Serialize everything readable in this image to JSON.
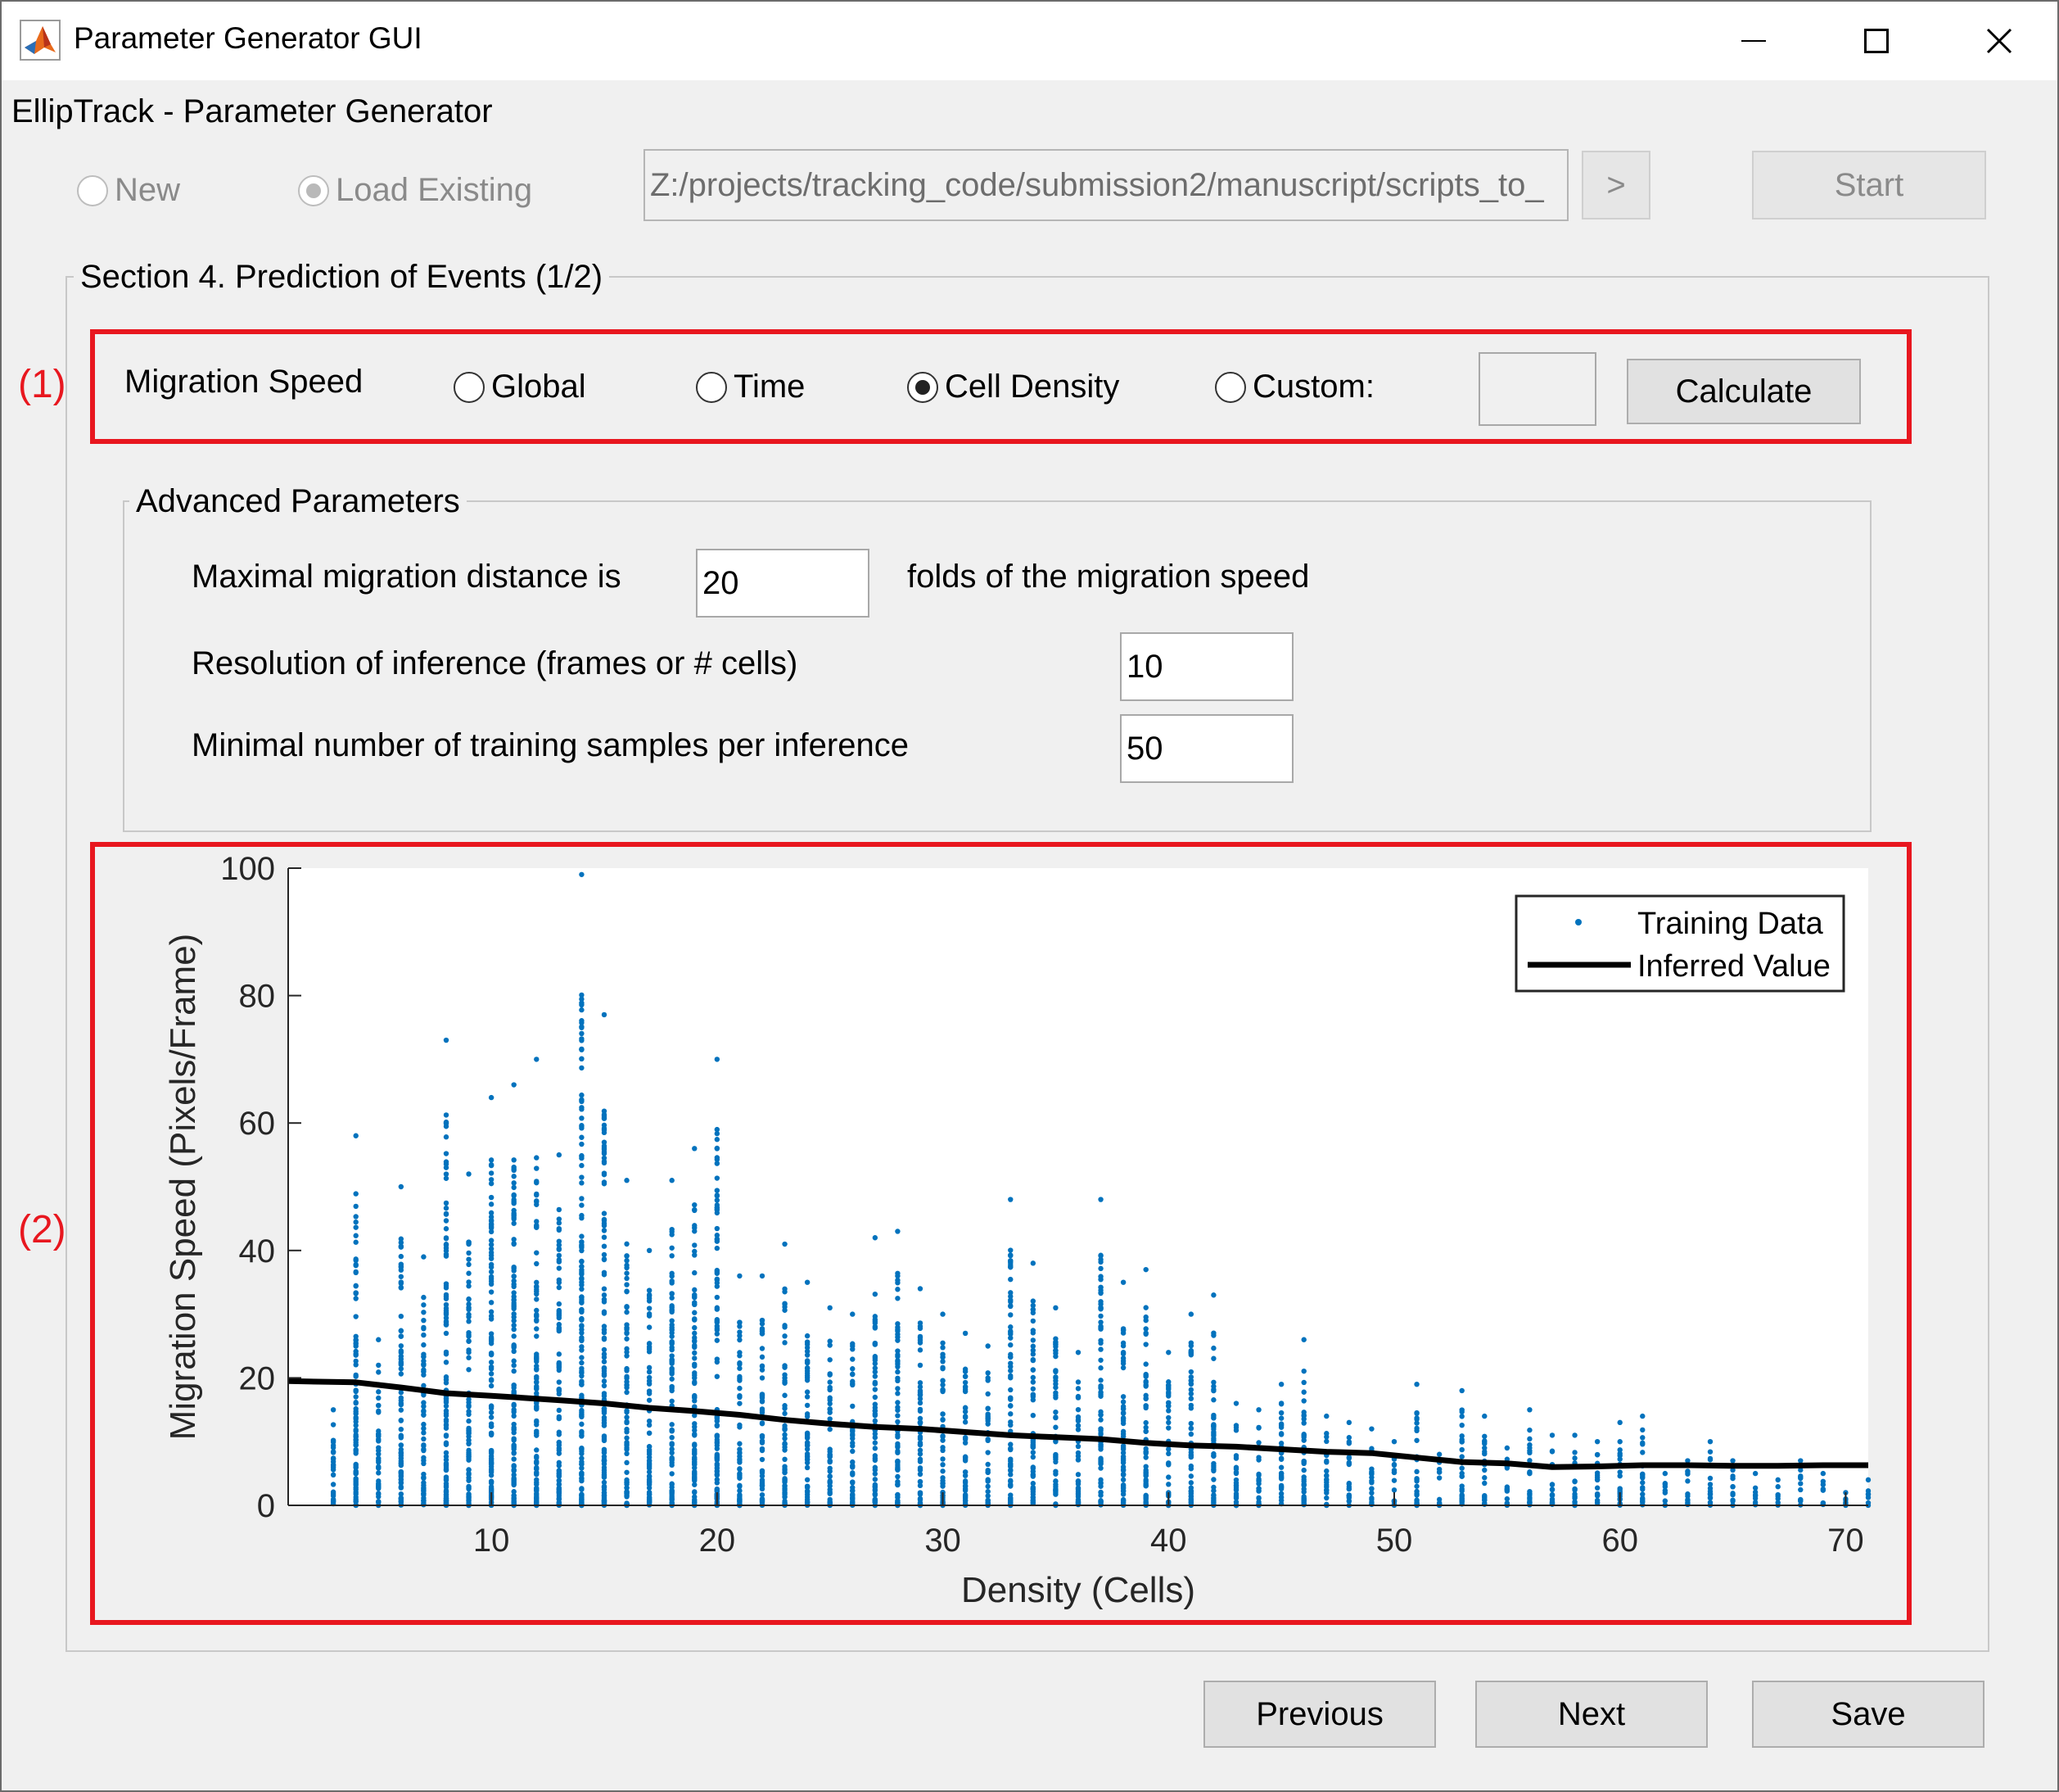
{
  "window": {
    "title": "Parameter Generator GUI",
    "controls": [
      "minimize",
      "maximize",
      "close"
    ]
  },
  "header": {
    "app_name": "EllipTrack - Parameter Generator"
  },
  "mode": {
    "options": [
      {
        "label": "New",
        "selected": false,
        "enabled": false
      },
      {
        "label": "Load Existing",
        "selected": true,
        "enabled": false
      }
    ],
    "path_value": "Z:/projects/tracking_code/submission2/manuscript/scripts_to_",
    "browse_label": ">",
    "start_label": "Start"
  },
  "section": {
    "title": "Section 4. Prediction of Events (1/2)",
    "annotation_1": "(1)",
    "annotation_2": "(2)",
    "migration_speed": {
      "label": "Migration Speed",
      "options": [
        {
          "label": "Global",
          "selected": false
        },
        {
          "label": "Time",
          "selected": false
        },
        {
          "label": "Cell Density",
          "selected": true
        },
        {
          "label": "Custom:",
          "selected": false
        }
      ],
      "custom_value": "",
      "calculate_label": "Calculate"
    },
    "advanced": {
      "title": "Advanced Parameters",
      "max_distance_label": "Maximal migration distance is",
      "max_distance_value": "20",
      "max_distance_suffix": "folds of the migration speed",
      "resolution_label": "Resolution of inference (frames or # cells)",
      "resolution_value": "10",
      "min_samples_label": "Minimal number of training samples per inference",
      "min_samples_value": "50"
    }
  },
  "footer": {
    "previous_label": "Previous",
    "next_label": "Next",
    "save_label": "Save"
  },
  "colors": {
    "accent_red": "#e8171f",
    "scatter_blue": "#0072bd",
    "line_black": "#000000"
  },
  "chart_data": {
    "type": "scatter",
    "xlabel": "Density (Cells)",
    "ylabel": "Migration Speed (Pixels/Frame)",
    "xlim": [
      1,
      71
    ],
    "ylim": [
      0,
      100
    ],
    "xticks": [
      10,
      20,
      30,
      40,
      50,
      60,
      70
    ],
    "yticks": [
      0,
      20,
      40,
      60,
      80,
      100
    ],
    "legend_position": "top-right",
    "series": [
      {
        "name": "Training Data",
        "style": "dots",
        "ranges_per_density": [
          {
            "x": 3,
            "max": 15
          },
          {
            "x": 4,
            "max": 58
          },
          {
            "x": 5,
            "max": 26
          },
          {
            "x": 6,
            "max": 50
          },
          {
            "x": 7,
            "max": 39
          },
          {
            "x": 8,
            "max": 73
          },
          {
            "x": 9,
            "max": 52
          },
          {
            "x": 10,
            "max": 64
          },
          {
            "x": 11,
            "max": 66
          },
          {
            "x": 12,
            "max": 70
          },
          {
            "x": 13,
            "max": 55
          },
          {
            "x": 14,
            "max": 99
          },
          {
            "x": 15,
            "max": 77
          },
          {
            "x": 16,
            "max": 51
          },
          {
            "x": 17,
            "max": 40
          },
          {
            "x": 18,
            "max": 51
          },
          {
            "x": 19,
            "max": 56
          },
          {
            "x": 20,
            "max": 70
          },
          {
            "x": 21,
            "max": 36
          },
          {
            "x": 22,
            "max": 36
          },
          {
            "x": 23,
            "max": 41
          },
          {
            "x": 24,
            "max": 35
          },
          {
            "x": 25,
            "max": 31
          },
          {
            "x": 26,
            "max": 30
          },
          {
            "x": 27,
            "max": 42
          },
          {
            "x": 28,
            "max": 43
          },
          {
            "x": 29,
            "max": 34
          },
          {
            "x": 30,
            "max": 30
          },
          {
            "x": 31,
            "max": 27
          },
          {
            "x": 32,
            "max": 25
          },
          {
            "x": 33,
            "max": 48
          },
          {
            "x": 34,
            "max": 38
          },
          {
            "x": 35,
            "max": 31
          },
          {
            "x": 36,
            "max": 24
          },
          {
            "x": 37,
            "max": 48
          },
          {
            "x": 38,
            "max": 35
          },
          {
            "x": 39,
            "max": 37
          },
          {
            "x": 40,
            "max": 24
          },
          {
            "x": 41,
            "max": 30
          },
          {
            "x": 42,
            "max": 33
          },
          {
            "x": 43,
            "max": 16
          },
          {
            "x": 44,
            "max": 15
          },
          {
            "x": 45,
            "max": 19
          },
          {
            "x": 46,
            "max": 26
          },
          {
            "x": 47,
            "max": 14
          },
          {
            "x": 48,
            "max": 13
          },
          {
            "x": 49,
            "max": 12
          },
          {
            "x": 50,
            "max": 10
          },
          {
            "x": 51,
            "max": 19
          },
          {
            "x": 52,
            "max": 8
          },
          {
            "x": 53,
            "max": 18
          },
          {
            "x": 54,
            "max": 14
          },
          {
            "x": 55,
            "max": 9
          },
          {
            "x": 56,
            "max": 15
          },
          {
            "x": 57,
            "max": 11
          },
          {
            "x": 58,
            "max": 11
          },
          {
            "x": 59,
            "max": 10
          },
          {
            "x": 60,
            "max": 13
          },
          {
            "x": 61,
            "max": 14
          },
          {
            "x": 62,
            "max": 5
          },
          {
            "x": 63,
            "max": 7
          },
          {
            "x": 64,
            "max": 10
          },
          {
            "x": 65,
            "max": 7
          },
          {
            "x": 66,
            "max": 5
          },
          {
            "x": 67,
            "max": 4
          },
          {
            "x": 68,
            "max": 7
          },
          {
            "x": 69,
            "max": 5
          },
          {
            "x": 70,
            "max": 2
          },
          {
            "x": 71,
            "max": 4
          }
        ]
      },
      {
        "name": "Inferred Value",
        "style": "line",
        "x": [
          1,
          4,
          6,
          8,
          10,
          13,
          15,
          17,
          19,
          21,
          23,
          25,
          27,
          29,
          31,
          33,
          35,
          37,
          39,
          41,
          43,
          45,
          47,
          49,
          51,
          53,
          55,
          57,
          59,
          61,
          63,
          65,
          67,
          69,
          71
        ],
        "y": [
          19.5,
          19.3,
          18.5,
          17.6,
          17.2,
          16.5,
          16,
          15.3,
          14.8,
          14.2,
          13.4,
          12.8,
          12.3,
          12,
          11.5,
          11,
          10.7,
          10.4,
          9.8,
          9.4,
          9.2,
          8.8,
          8.4,
          8.2,
          7.5,
          6.8,
          6.6,
          6,
          6.1,
          6.3,
          6.3,
          6.2,
          6.2,
          6.3,
          6.3
        ]
      }
    ]
  }
}
